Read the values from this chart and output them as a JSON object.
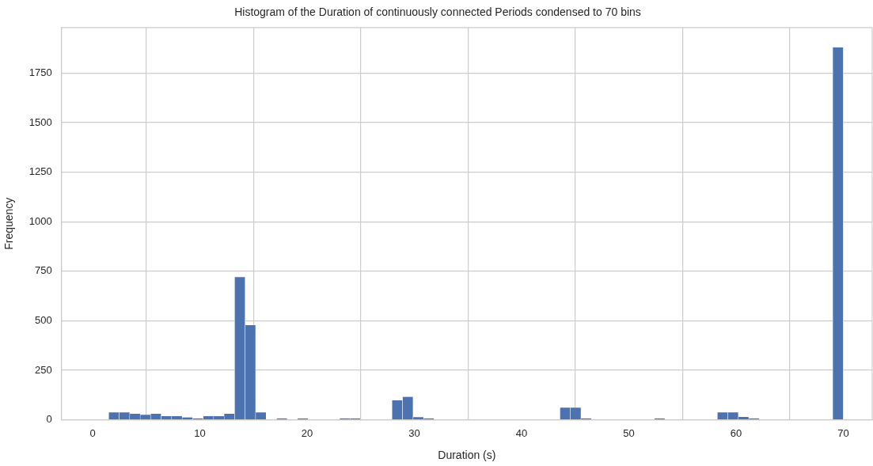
{
  "chart_data": {
    "type": "histogram",
    "title": "Histogram of the Duration of continuously connected Periods condensed to 70 bins",
    "xlabel": "Duration (s)",
    "ylabel": "Frequency",
    "color": "#4c72b0",
    "bins": [
      1.5,
      2.48,
      3.46,
      4.44,
      5.41,
      6.39,
      7.37,
      8.35,
      9.33,
      10.31,
      11.29,
      12.26,
      13.24,
      14.22,
      15.2,
      16.18,
      17.16,
      18.14,
      19.11,
      20.09,
      21.07,
      22.05,
      23.03,
      24.01,
      24.99,
      25.96,
      26.94,
      27.92,
      28.9,
      29.88,
      30.86,
      31.84,
      32.81,
      33.79,
      34.77,
      35.75,
      36.73,
      37.71,
      38.69,
      39.66,
      40.64,
      41.62,
      42.6,
      43.58,
      44.56,
      45.54,
      46.51,
      47.49,
      48.47,
      49.45,
      50.43,
      51.41,
      52.39,
      53.36,
      54.34,
      55.32,
      56.3,
      57.28,
      58.26,
      59.24,
      60.21,
      61.19,
      62.17,
      63.15,
      64.13,
      65.11,
      66.09,
      67.06,
      68.04,
      69.02,
      70.0
    ],
    "values": [
      37,
      37,
      30,
      25,
      30,
      18,
      18,
      12,
      7,
      18,
      18,
      30,
      720,
      478,
      37,
      0,
      7,
      0,
      7,
      0,
      0,
      0,
      7,
      7,
      0,
      0,
      0,
      98,
      116,
      13,
      7,
      0,
      0,
      0,
      0,
      0,
      0,
      0,
      0,
      0,
      0,
      0,
      0,
      61,
      61,
      7,
      0,
      0,
      0,
      0,
      0,
      0,
      7,
      0,
      0,
      0,
      0,
      0,
      37,
      37,
      14,
      7,
      0,
      0,
      0,
      0,
      0,
      0,
      0,
      1880
    ],
    "xlim": [
      -2.9,
      72.7
    ],
    "xticks": [
      0,
      10,
      20,
      30,
      40,
      50,
      60,
      70
    ],
    "ylim": [
      0,
      1980
    ],
    "yticks": [
      0,
      250,
      500,
      750,
      1000,
      1250,
      1500,
      1750
    ],
    "grid": true,
    "legend": false
  }
}
